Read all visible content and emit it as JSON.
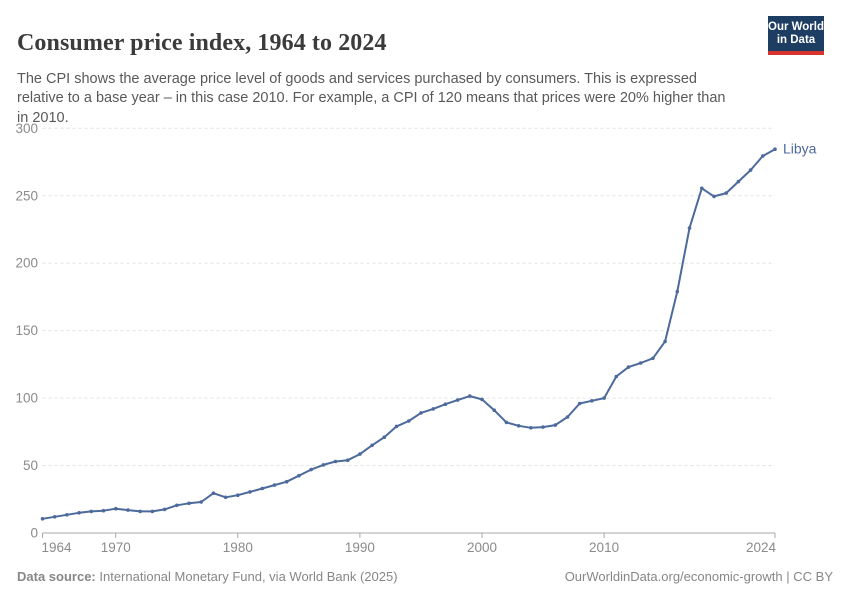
{
  "header": {
    "title": "Consumer price index, 1964 to 2024",
    "subtitle": "The CPI shows the average price level of goods and services purchased by consumers. This is expressed relative to a base year – in this case 2010. For example, a CPI of 120 means that prices were 20% higher than in 2010."
  },
  "logo": {
    "line1": "Our World",
    "line2": "in Data"
  },
  "chart_data": {
    "type": "line",
    "title": "Consumer price index, 1964 to 2024",
    "xlabel": "",
    "ylabel": "",
    "xlim": [
      1964,
      2024
    ],
    "ylim": [
      0,
      300
    ],
    "x_ticks": [
      1964,
      1970,
      1980,
      1990,
      2000,
      2010,
      2024
    ],
    "y_ticks": [
      0,
      50,
      100,
      150,
      200,
      250,
      300
    ],
    "grid": "horizontal-dashed",
    "legend_position": "end-of-line-label",
    "series": [
      {
        "name": "Libya",
        "x": [
          1964,
          1965,
          1966,
          1967,
          1968,
          1969,
          1970,
          1971,
          1972,
          1973,
          1974,
          1975,
          1976,
          1977,
          1978,
          1979,
          1980,
          1981,
          1982,
          1983,
          1984,
          1985,
          1986,
          1987,
          1988,
          1989,
          1990,
          1991,
          1992,
          1993,
          1994,
          1995,
          1996,
          1997,
          1998,
          1999,
          2000,
          2001,
          2002,
          2003,
          2004,
          2005,
          2006,
          2007,
          2008,
          2009,
          2010,
          2011,
          2012,
          2013,
          2014,
          2015,
          2016,
          2017,
          2018,
          2019,
          2020,
          2021,
          2022,
          2023,
          2024
        ],
        "values": [
          10.5,
          12,
          13.5,
          15,
          16,
          16.5,
          18,
          17,
          16,
          16,
          17.5,
          20.5,
          22,
          23,
          29.5,
          26.5,
          28,
          30.5,
          33,
          35.5,
          38,
          42.5,
          47,
          50.5,
          53,
          54,
          58.5,
          65,
          71,
          79,
          83,
          89,
          92,
          95.5,
          98.5,
          101.5,
          99,
          91,
          82,
          79.5,
          78,
          78.5,
          80,
          86,
          96,
          98,
          100,
          116,
          123,
          126,
          129.5,
          142,
          179,
          226,
          255.5,
          249.5,
          252,
          260.5,
          269,
          279.5,
          284.5
        ]
      }
    ]
  },
  "entity_label": "Libya",
  "colors": {
    "line": "#4C6A9C",
    "entity_label": "#4C6A9C",
    "tick_text": "#8b8b8b",
    "gridline": "#e2e2e2",
    "axis": "#a8a8a8",
    "title_text": "#3b3b3b",
    "subtitle_text": "#595959",
    "footer_text": "#878787",
    "logo_bg": "#1d3d63",
    "logo_stripe": "#d5352c"
  },
  "footer": {
    "source_label": "Data source:",
    "source_text": " International Monetary Fund, via World Bank (2025)",
    "url": "OurWorldinData.org/economic-growth",
    "separator": " | ",
    "license": "CC BY"
  }
}
